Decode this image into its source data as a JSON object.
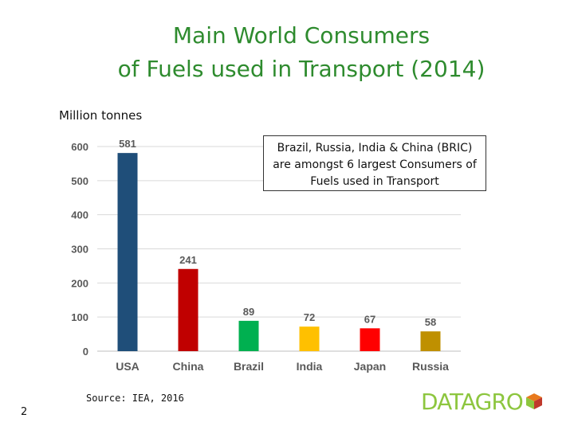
{
  "title_line1": "Main World Consumers",
  "title_line2": "of Fuels used in Transport (2014)",
  "unit_label": "Million tonnes",
  "note": {
    "line1": "Brazil, Russia, India & China (BRIC)",
    "line2": "are amongst 6 largest Consumers of",
    "line3": "Fuels used in Transport"
  },
  "source": "Source: IEA, 2016",
  "page_number": "2",
  "logo": {
    "text": "DATAGRO",
    "text_color": "#8dc63f",
    "cube_colors": [
      "#e8791d",
      "#8dc63f",
      "#c0392b"
    ]
  },
  "chart_data": {
    "type": "bar",
    "title": "",
    "xlabel": "",
    "ylabel": "Million tonnes",
    "ylim": [
      0,
      600
    ],
    "yticks": [
      "0",
      "100",
      "200",
      "300",
      "400",
      "500",
      "600"
    ],
    "grid": true,
    "categories": [
      "USA",
      "China",
      "Brazil",
      "India",
      "Japan",
      "Russia"
    ],
    "values": [
      581,
      241,
      89,
      72,
      67,
      58
    ],
    "data_labels": [
      "581",
      "241",
      "89",
      "72",
      "67",
      "58"
    ],
    "colors": [
      "#1f4e79",
      "#c00000",
      "#00b050",
      "#ffc000",
      "#ff0000",
      "#bf9000"
    ]
  }
}
